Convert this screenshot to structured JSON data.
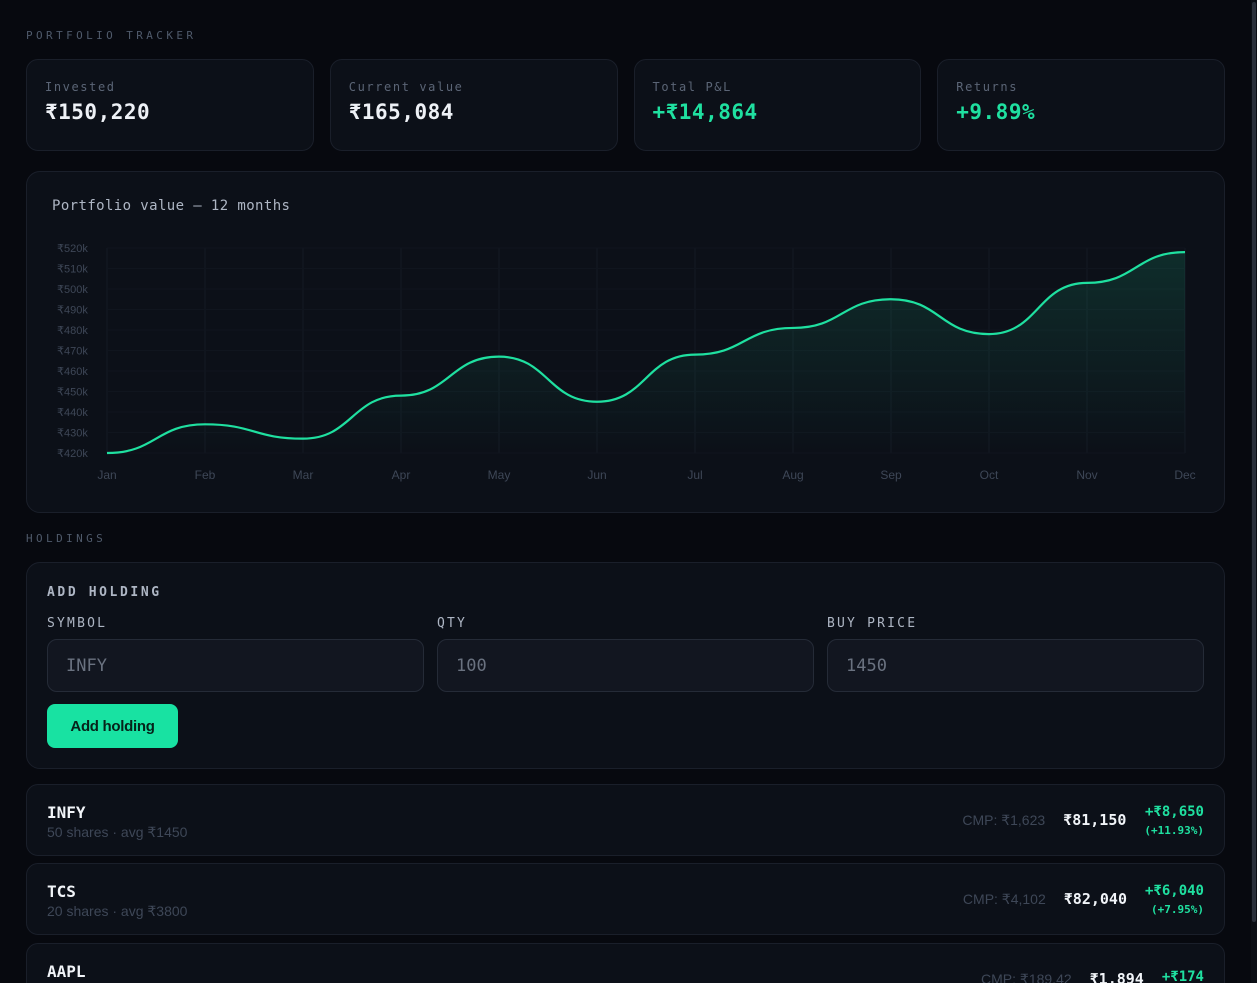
{
  "app": {
    "title": "PORTFOLIO TRACKER"
  },
  "stats": [
    {
      "label": "Invested",
      "value": "₹150,220",
      "positive": false
    },
    {
      "label": "Current value",
      "value": "₹165,084",
      "positive": false
    },
    {
      "label": "Total P&L",
      "value": "+₹14,864",
      "positive": true
    },
    {
      "label": "Returns",
      "value": "+9.89%",
      "positive": true
    }
  ],
  "chart_data": {
    "type": "area",
    "title": "Portfolio value — 12 months",
    "categories": [
      "Jan",
      "Feb",
      "Mar",
      "Apr",
      "May",
      "Jun",
      "Jul",
      "Aug",
      "Sep",
      "Oct",
      "Nov",
      "Dec"
    ],
    "values": [
      420,
      434,
      427,
      448,
      467,
      445,
      468,
      481,
      495,
      478,
      503,
      518
    ],
    "y_ticks": [
      "₹420k",
      "₹430k",
      "₹440k",
      "₹450k",
      "₹460k",
      "₹470k",
      "₹480k",
      "₹490k",
      "₹500k",
      "₹510k",
      "₹520k"
    ],
    "ylim": [
      420,
      520
    ],
    "y_unit": "k",
    "grid": true,
    "color": "#1fe0a0"
  },
  "holdings_label": "HOLDINGS",
  "add_form": {
    "title": "ADD HOLDING",
    "symbol_label": "SYMBOL",
    "symbol_placeholder": "INFY",
    "qty_label": "QTY",
    "qty_placeholder": "100",
    "price_label": "BUY PRICE",
    "price_placeholder": "1450",
    "button_label": "Add holding"
  },
  "holdings": [
    {
      "symbol": "INFY",
      "sub": "50 shares · avg ₹1450",
      "cmp": "CMP: ₹1,623",
      "value": "₹81,150",
      "pl": "+₹8,650",
      "pl_pct": "(+11.93%)"
    },
    {
      "symbol": "TCS",
      "sub": "20 shares · avg ₹3800",
      "cmp": "CMP: ₹4,102",
      "value": "₹82,040",
      "pl": "+₹6,040",
      "pl_pct": "(+7.95%)"
    },
    {
      "symbol": "AAPL",
      "sub": "",
      "cmp": "CMP: ₹189.42",
      "value": "₹1,894",
      "pl": "+₹174",
      "pl_pct": ""
    }
  ],
  "colors": {
    "accent": "#1fe0a0",
    "background": "#07090f",
    "card": "#0c1018"
  }
}
